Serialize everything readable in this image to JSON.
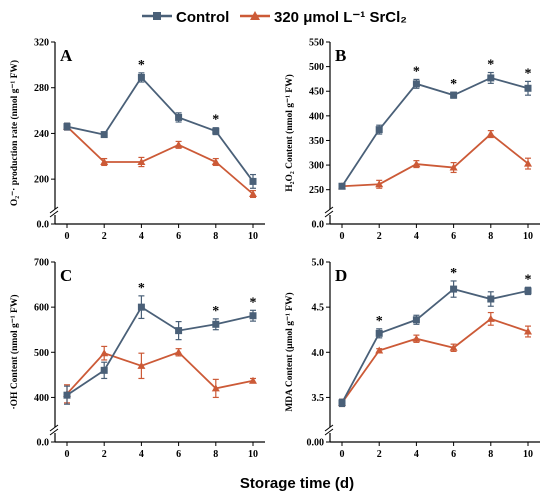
{
  "legend": {
    "items": [
      {
        "label": "Control",
        "color": "#4a6078",
        "marker": "square"
      },
      {
        "label": "320 μmol L⁻¹ SrCl₂",
        "color": "#cc5a37",
        "marker": "triangle"
      }
    ]
  },
  "xlabel": "Storage time (d)",
  "chart_data": [
    {
      "type": "line",
      "panel": "A",
      "ylabel": "O₂⁻· production rate (nmol g⁻¹ FW)",
      "x": [
        0,
        2,
        4,
        6,
        8,
        10
      ],
      "xticks": [
        "0",
        "2",
        "4",
        "6",
        "8",
        "10"
      ],
      "yticks": [
        "0.0",
        "200",
        "240",
        "280",
        "320"
      ],
      "ylim": [
        180,
        320
      ],
      "axis_break": true,
      "series": [
        {
          "name": "Control",
          "values": [
            246,
            239,
            289,
            254,
            242,
            198
          ],
          "err": [
            3,
            2,
            4,
            4,
            3,
            6
          ]
        },
        {
          "name": "320 μmol L⁻¹ SrCl₂",
          "values": [
            246,
            215,
            215,
            230,
            215,
            187
          ],
          "err": [
            3,
            3,
            4,
            3,
            3,
            3
          ]
        }
      ],
      "significance": [
        4,
        8
      ]
    },
    {
      "type": "line",
      "panel": "B",
      "ylabel": "H₂O₂ Content (nmol g⁻¹ FW)",
      "x": [
        0,
        2,
        4,
        6,
        8,
        10
      ],
      "xticks": [
        "0",
        "2",
        "4",
        "6",
        "8",
        "10"
      ],
      "yticks": [
        "0.0",
        "250",
        "300",
        "350",
        "400",
        "450",
        "500",
        "550"
      ],
      "ylim": [
        225,
        550
      ],
      "axis_break": true,
      "series": [
        {
          "name": "Control",
          "values": [
            257,
            372,
            465,
            442,
            477,
            456
          ],
          "err": [
            4,
            9,
            9,
            6,
            11,
            14
          ]
        },
        {
          "name": "320 μmol L⁻¹ SrCl₂",
          "values": [
            257,
            261,
            302,
            295,
            363,
            303
          ],
          "err": [
            4,
            8,
            7,
            10,
            7,
            11
          ]
        }
      ],
      "significance": [
        4,
        6,
        8,
        10
      ]
    },
    {
      "type": "line",
      "panel": "C",
      "ylabel": "·OH Content (nmol g⁻¹ FW)",
      "x": [
        0,
        2,
        4,
        6,
        8,
        10
      ],
      "xticks": [
        "0",
        "2",
        "4",
        "6",
        "8",
        "10"
      ],
      "yticks": [
        "0.0",
        "400",
        "500",
        "600",
        "700"
      ],
      "ylim": [
        350,
        700
      ],
      "axis_break": true,
      "series": [
        {
          "name": "Control",
          "values": [
            405,
            460,
            600,
            548,
            562,
            581
          ],
          "err": [
            20,
            18,
            25,
            20,
            12,
            12
          ]
        },
        {
          "name": "320 μmol L⁻¹ SrCl₂",
          "values": [
            408,
            498,
            470,
            500,
            420,
            437
          ],
          "err": [
            20,
            15,
            28,
            8,
            20,
            5
          ]
        }
      ],
      "significance": [
        4,
        8,
        10
      ]
    },
    {
      "type": "line",
      "panel": "D",
      "ylabel": "MDA Content (μmol g⁻¹ FW)",
      "x": [
        0,
        2,
        4,
        6,
        8,
        10
      ],
      "xticks": [
        "0",
        "2",
        "4",
        "6",
        "8",
        "10"
      ],
      "yticks": [
        "0.00",
        "3.5",
        "4.0",
        "4.5",
        "5.0"
      ],
      "ylim": [
        3.25,
        5.0
      ],
      "axis_break": true,
      "series": [
        {
          "name": "Control",
          "values": [
            3.44,
            4.21,
            4.36,
            4.7,
            4.59,
            4.68
          ],
          "err": [
            0.04,
            0.05,
            0.05,
            0.09,
            0.08,
            0.04
          ]
        },
        {
          "name": "320 μmol L⁻¹ SrCl₂",
          "values": [
            3.44,
            4.02,
            4.15,
            4.05,
            4.37,
            4.23
          ],
          "err": [
            0.04,
            0.02,
            0.04,
            0.04,
            0.07,
            0.06
          ]
        }
      ],
      "significance": [
        2,
        6,
        10
      ]
    }
  ]
}
